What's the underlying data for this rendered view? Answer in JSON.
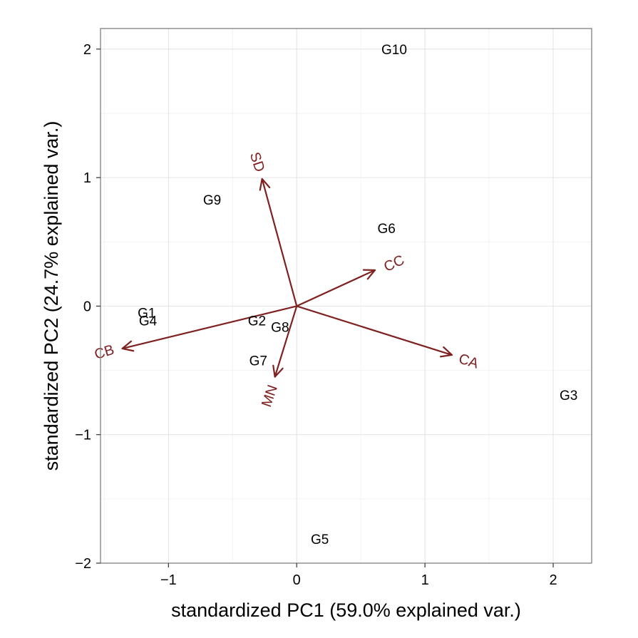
{
  "chart_data": {
    "type": "scatter",
    "title": "",
    "xlabel": "standardized PC1 (59.0% explained var.)",
    "ylabel": "standardized PC2 (24.7% explained var.)",
    "xlim": [
      -1.53,
      2.3
    ],
    "ylim": [
      -2.0,
      2.16
    ],
    "x_ticks": [
      -1,
      0,
      1,
      2
    ],
    "x_tick_labels": [
      "−1",
      "0",
      "1",
      "2"
    ],
    "y_ticks": [
      -2,
      -1,
      0,
      1,
      2
    ],
    "y_tick_labels": [
      "−2",
      "−1",
      "0",
      "1",
      "2"
    ],
    "grid": true,
    "legend": "none",
    "points": [
      {
        "label": "G1",
        "x": -1.17,
        "y": -0.06
      },
      {
        "label": "G2",
        "x": -0.31,
        "y": -0.12
      },
      {
        "label": "G3",
        "x": 2.12,
        "y": -0.7
      },
      {
        "label": "G4",
        "x": -1.16,
        "y": -0.12
      },
      {
        "label": "G5",
        "x": 0.18,
        "y": -1.82
      },
      {
        "label": "G6",
        "x": 0.7,
        "y": 0.6
      },
      {
        "label": "G7",
        "x": -0.3,
        "y": -0.43
      },
      {
        "label": "G8",
        "x": -0.13,
        "y": -0.17
      },
      {
        "label": "G9",
        "x": -0.66,
        "y": 0.82
      },
      {
        "label": "G10",
        "x": 0.76,
        "y": 1.99
      }
    ],
    "arrows": [
      {
        "label": "SD",
        "x": -0.27,
        "y": 0.99
      },
      {
        "label": "CC",
        "x": 0.61,
        "y": 0.28
      },
      {
        "label": "CA",
        "x": 1.21,
        "y": -0.38
      },
      {
        "label": "MN",
        "x": -0.17,
        "y": -0.55
      },
      {
        "label": "CB",
        "x": -1.36,
        "y": -0.33
      }
    ],
    "arrow_labels_pos": [
      {
        "label": "SD",
        "x": -0.31,
        "y": 1.12,
        "rotate": 72
      },
      {
        "label": "CC",
        "x": 0.76,
        "y": 0.33,
        "rotate": -25
      },
      {
        "label": "CA",
        "x": 1.34,
        "y": -0.43,
        "rotate": 17
      },
      {
        "label": "MN",
        "x": -0.21,
        "y": -0.7,
        "rotate": -71
      },
      {
        "label": "CB",
        "x": -1.5,
        "y": -0.36,
        "rotate": -17
      }
    ],
    "colors": {
      "arrow": "#7f2121",
      "panel_border": "#7f7f7f",
      "grid_major": "#e5e5e5",
      "grid_minor": "#f2f2f2",
      "text": "#000000"
    }
  }
}
